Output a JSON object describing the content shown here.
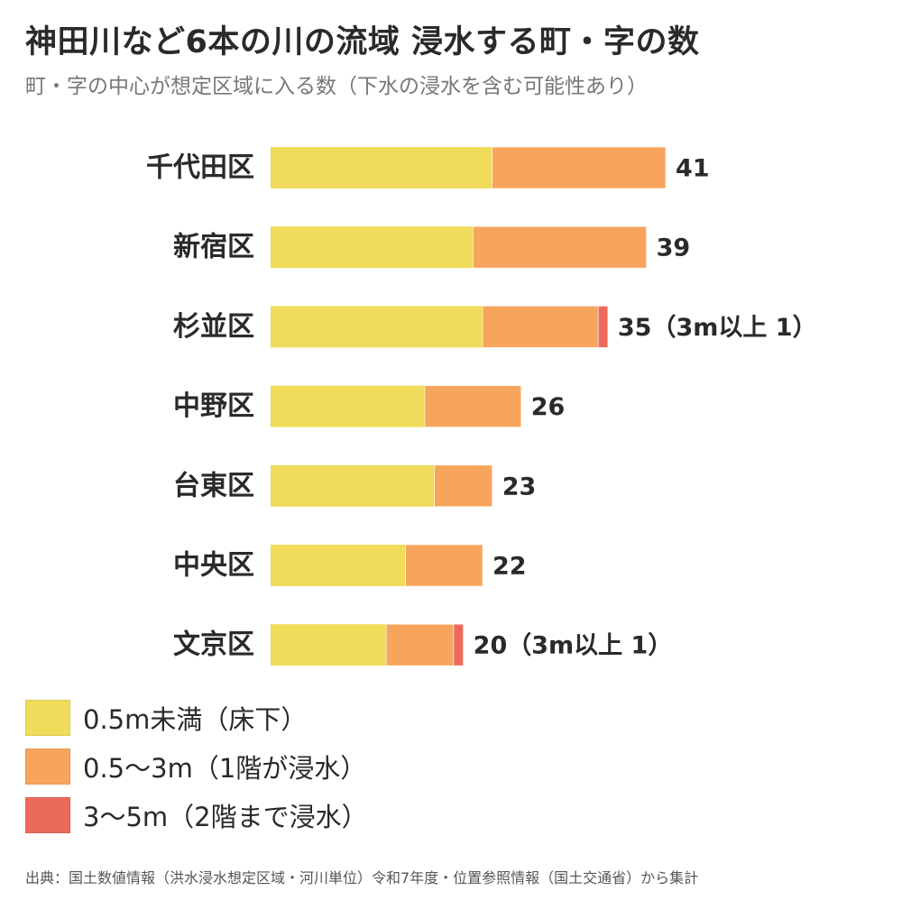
{
  "title": "神田川など6本の川の流域 浸水する町・字の数",
  "subtitle": "町・字の中心が想定区域に入る数（下水の浸水を含む可能性あり）",
  "source": "出典：国土数値情報（洪水浸水想定区域・河川単位）令和7年度・位置参照情報（国土交通省）から集計",
  "colors": {
    "under_05": "#f0dc5a",
    "from_05_to_3": "#f7a55d",
    "from_3_to_5": "#ec6a5c"
  },
  "legend": [
    {
      "label": "0.5m未満（床下）",
      "color": "#f0dc5a"
    },
    {
      "label": "0.5〜3m（1階が浸水）",
      "color": "#f7a55d"
    },
    {
      "label": "3〜5m（2階まで浸水）",
      "color": "#ec6a5c"
    }
  ],
  "chart_data": {
    "type": "bar",
    "orientation": "horizontal",
    "stacked": true,
    "categories": [
      "千代田区",
      "新宿区",
      "杉並区",
      "中野区",
      "台東区",
      "中央区",
      "文京区"
    ],
    "series": [
      {
        "name": "0.5m未満（床下）",
        "color": "#f0dc5a",
        "values": [
          23,
          21,
          22,
          16,
          17,
          14,
          12
        ]
      },
      {
        "name": "0.5〜3m（1階が浸水）",
        "color": "#f7a55d",
        "values": [
          18,
          18,
          12,
          10,
          6,
          8,
          7
        ]
      },
      {
        "name": "3〜5m（2階まで浸水）",
        "color": "#ec6a5c",
        "values": [
          0,
          0,
          1,
          0,
          0,
          0,
          1
        ]
      }
    ],
    "data_labels": [
      "41",
      "39",
      "35（3m以上 1）",
      "26",
      "23",
      "22",
      "20（3m以上 1）"
    ],
    "xlim": [
      0,
      41
    ],
    "grid": false,
    "legend_position": "bottom-left"
  }
}
